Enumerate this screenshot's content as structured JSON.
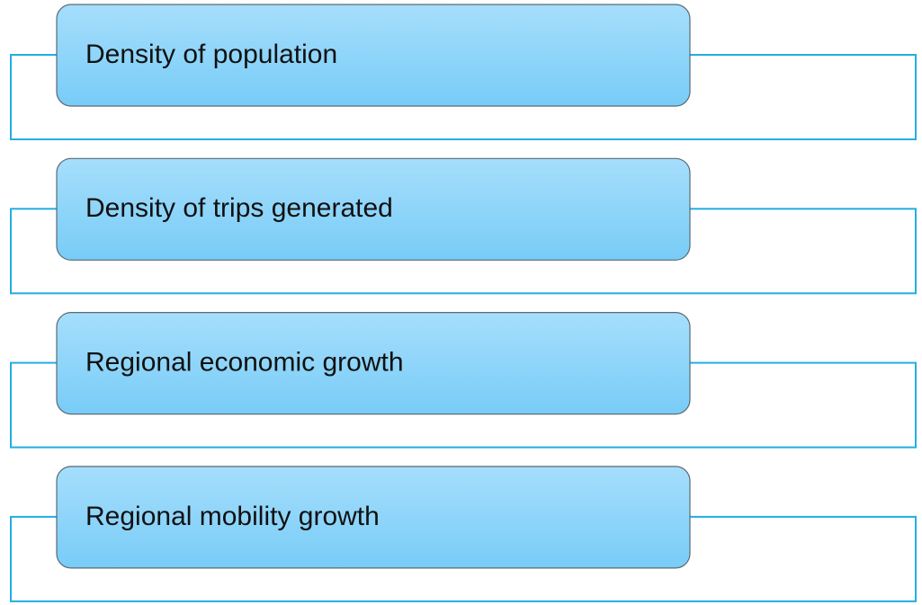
{
  "items": [
    {
      "label": "Density of population"
    },
    {
      "label": "Density of trips generated"
    },
    {
      "label": "Regional economic growth"
    },
    {
      "label": "Regional mobility growth"
    }
  ]
}
